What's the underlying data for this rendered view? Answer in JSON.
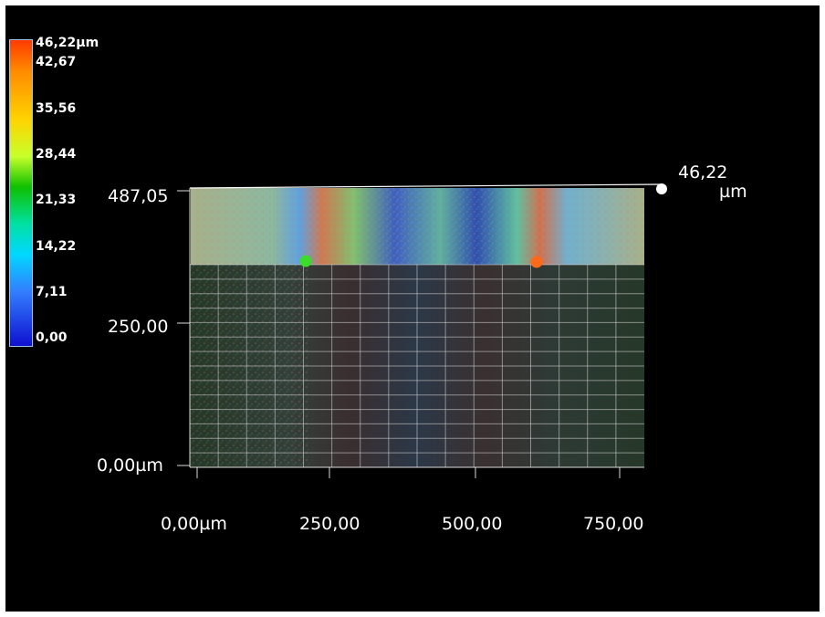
{
  "legend": {
    "labels": [
      "46,22µm",
      "42,67",
      "35,56",
      "28,44",
      "21,33",
      "14,22",
      "7,11",
      "0,00"
    ]
  },
  "y_axis": {
    "labels": [
      "487,05",
      "250,00",
      "0,00µm"
    ]
  },
  "x_axis": {
    "labels": [
      "0,00µm",
      "250,00",
      "500,00",
      "750,00"
    ]
  },
  "z_axis": {
    "value": "46,22",
    "unit": "µm"
  },
  "markers": [
    {
      "name": "green-marker",
      "color": "#3cdc2a"
    },
    {
      "name": "orange-marker",
      "color": "#ff6a1a"
    }
  ],
  "colors": {
    "background": "#000000",
    "grid": "#d8d8d8",
    "surface_base": "#2c3a2a"
  }
}
